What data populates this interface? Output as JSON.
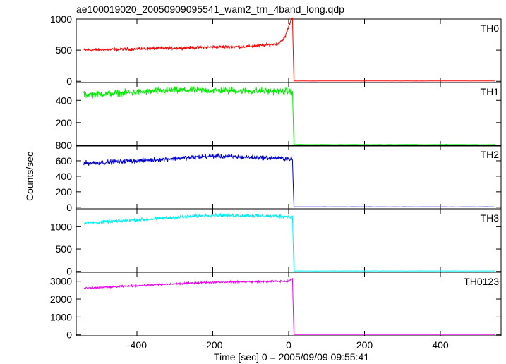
{
  "chart_data": {
    "type": "line",
    "title": "ae100019020_20050909095541_wam2_trn_4band_long.qdp",
    "xlabel": "Time [sec] 0 = 2005/09/09 09:55:41",
    "ylabel": "Counts/sec",
    "xlim": [
      -560,
      560
    ],
    "x_ticks": [
      -400,
      -200,
      0,
      200,
      400
    ],
    "grid": false,
    "panels": [
      {
        "label": "TH0",
        "color": "#ff0000",
        "ylim": [
          -20,
          1000
        ],
        "y_ticks": [
          0,
          500,
          1000
        ],
        "baseline_x": [
          -540,
          -400,
          -200,
          -100,
          -30,
          -10,
          0,
          5,
          10
        ],
        "baseline_y": [
          500,
          520,
          550,
          560,
          600,
          700,
          880,
          970,
          1010
        ],
        "noise": 35,
        "drop_y": 5
      },
      {
        "label": "TH1",
        "color": "#00ee00",
        "ylim": [
          -10,
          560
        ],
        "y_ticks": [
          200,
          400
        ],
        "baseline_x": [
          -540,
          -300,
          -200,
          0,
          10
        ],
        "baseline_y": [
          450,
          490,
          490,
          480,
          480
        ],
        "noise": 45,
        "drop_y": 3
      },
      {
        "label": "TH2",
        "color": "#0000cc",
        "ylim": [
          -20,
          800
        ],
        "y_ticks": [
          0,
          200,
          400,
          600,
          800
        ],
        "baseline_x": [
          -540,
          -400,
          -200,
          0,
          10
        ],
        "baseline_y": [
          570,
          600,
          660,
          630,
          620
        ],
        "noise": 45,
        "drop_y": 5
      },
      {
        "label": "TH3",
        "color": "#00eeee",
        "ylim": [
          -20,
          1400
        ],
        "y_ticks": [
          0,
          500,
          1000
        ],
        "baseline_x": [
          -540,
          -400,
          -200,
          0,
          10
        ],
        "baseline_y": [
          1080,
          1150,
          1260,
          1230,
          1210
        ],
        "noise": 55,
        "drop_y": 10
      },
      {
        "label": "TH0123",
        "color": "#ee00ee",
        "ylim": [
          -50,
          3500
        ],
        "y_ticks": [
          0,
          1000,
          2000,
          3000
        ],
        "baseline_x": [
          -540,
          -400,
          -200,
          0,
          10
        ],
        "baseline_y": [
          2600,
          2750,
          2950,
          3000,
          3150
        ],
        "noise": 80,
        "drop_y": 20
      }
    ]
  }
}
